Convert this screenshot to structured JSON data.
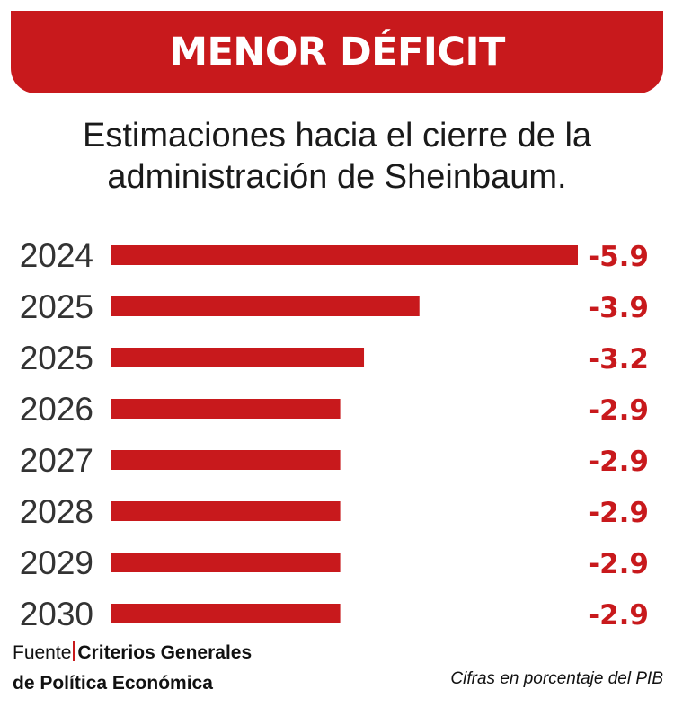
{
  "header": {
    "title": "MENOR DÉFICIT",
    "subtitle_line1": "Estimaciones hacia el cierre de la",
    "subtitle_line2": "administración de Sheinbaum."
  },
  "colors": {
    "accent": "#c8191c",
    "text": "#1a1a1a",
    "year_text": "#333333"
  },
  "chart_data": {
    "type": "bar",
    "orientation": "horizontal",
    "categories": [
      "2024",
      "2025",
      "2025",
      "2026",
      "2027",
      "2028",
      "2029",
      "2030"
    ],
    "values": [
      -5.9,
      -3.9,
      -3.2,
      -2.9,
      -2.9,
      -2.9,
      -2.9,
      -2.9
    ],
    "value_labels": [
      "-5.9",
      "-3.9",
      "-3.2",
      "-2.9",
      "-2.9",
      "-2.9",
      "-2.9",
      "-2.9"
    ],
    "title": "MENOR DÉFICIT",
    "xlabel": "",
    "ylabel": "",
    "unit": "Cifras en porcentaje del PIB"
  },
  "footer": {
    "source_label": "Fuente",
    "source_line1": "Criterios Generales",
    "source_line2": "de Política Económica",
    "note": "Cifras en porcentaje del PIB"
  }
}
